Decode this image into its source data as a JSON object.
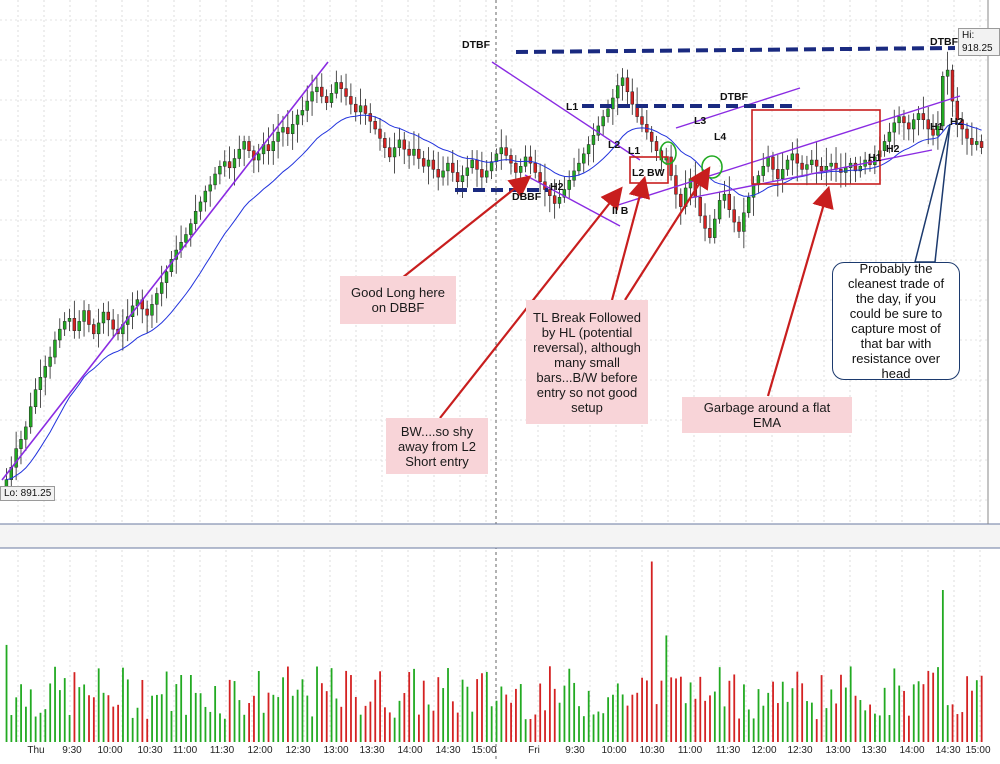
{
  "chart_data": {
    "type": "candlestick",
    "price_axis": {
      "ylim": [
        889,
        922
      ]
    },
    "volume_axis": {
      "ylim": [
        0,
        100
      ]
    },
    "hi_label": "Hi: 918.25",
    "lo_label": "Lo: 891.25",
    "time_labels": [
      "Thu",
      "9:30",
      "10:00",
      "10:30",
      "11:00",
      "11:30",
      "12:00",
      "12:30",
      "13:00",
      "13:30",
      "14:00",
      "14:30",
      "15:00",
      "Fri",
      "9:30",
      "10:00",
      "10:30",
      "11:00",
      "11:30",
      "12:00",
      "12:30",
      "13:00",
      "13:30",
      "14:00",
      "14:30",
      "15:00"
    ],
    "thu_close": [
      891.6,
      892.4,
      893.6,
      894.2,
      895.0,
      896.3,
      897.4,
      898.2,
      898.9,
      899.5,
      900.6,
      901.3,
      901.8,
      902.0,
      901.2,
      901.8,
      902.5,
      901.6,
      901.0,
      901.7,
      902.4,
      901.9,
      901.3,
      901.0,
      901.6,
      902.1,
      902.8,
      903.2,
      902.6,
      902.2,
      902.9,
      903.6,
      904.3,
      905.0,
      905.8,
      906.4,
      906.9,
      907.4,
      908.1,
      908.9,
      909.5,
      910.2,
      910.6,
      911.3,
      911.8,
      912.1,
      911.7,
      912.3,
      912.9,
      913.4,
      912.8,
      912.2,
      912.6,
      913.2,
      912.8,
      913.4,
      914.0,
      914.3,
      913.9,
      914.5,
      915.1,
      915.4,
      916.0,
      916.6,
      916.9,
      916.3,
      915.9,
      916.5,
      917.2,
      916.8,
      916.3,
      915.8,
      915.3,
      915.7,
      915.2,
      914.7,
      914.2,
      913.6,
      913.0,
      912.4,
      913.0,
      913.5,
      912.9,
      912.5,
      912.9,
      912.3,
      911.8,
      912.2,
      911.6,
      911.1,
      911.5,
      912.0,
      911.4,
      910.8,
      911.2,
      911.7,
      912.2,
      911.6,
      911.1,
      911.5,
      912.1,
      912.6,
      913.0,
      912.5,
      912.0,
      911.4,
      911.8,
      912.4,
      912.0,
      911.4,
      910.8,
      910.3,
      909.9,
      909.4,
      909.8,
      910.3,
      910.9,
      911.5,
      912.0,
      912.6,
      913.2,
      913.8,
      914.4,
      915.0,
      915.5,
      916.2,
      917.0,
      917.5,
      916.6,
      915.8,
      915.0,
      914.5,
      914.0,
      913.4,
      912.8,
      912.2
    ]
  },
  "annotations": {
    "dtbf_1": "DTBF",
    "dtbf_2": "DTBF",
    "dtbf_3": "DTBF",
    "dbbf": "DBBF",
    "l1": "L1",
    "l1b": "L1",
    "l2": "L2",
    "l2b": "L2",
    "bw": "BW",
    "l3": "L3",
    "l4": "L4",
    "h1": "H1",
    "h1b": "H1",
    "h2a": "H2",
    "h2b": "H2",
    "h2c": "H2",
    "iib": "II B"
  },
  "callouts": {
    "good_long": "Good Long here on DBBF",
    "bw_shy": "BW....so shy away from L2 Short entry",
    "tl_break": "TL Break Followed by HL (potential reversal), although many small bars...B/W before entry so not good setup",
    "garbage": "Garbage around a flat EMA",
    "cleanest": "Probably the cleanest trade of the day, if you could be sure to capture most of that bar with resistance over head"
  },
  "colors": {
    "up": "#22aa22",
    "down": "#d42222",
    "ema": "#2233dd",
    "trendline": "#8a2be2",
    "level": "#1a2a80",
    "arrow": "#c81e1e",
    "box": "#c81e1e",
    "grid": "#c8c8c8"
  }
}
